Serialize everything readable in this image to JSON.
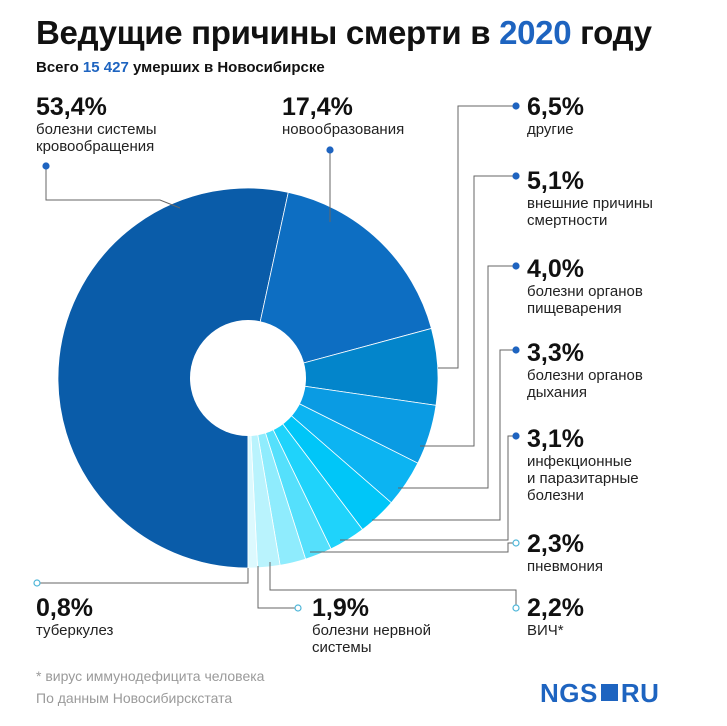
{
  "header": {
    "title_pre": "Ведущие причины смерти в ",
    "title_year": "2020",
    "title_post": " году",
    "subtitle_pre": "Всего ",
    "subtitle_num": "15 427",
    "subtitle_post": " умерших в Новосибирске"
  },
  "chart_data": {
    "type": "pie",
    "title": "Ведущие причины смерти в 2020 году",
    "slices": [
      {
        "value": 53.4,
        "pct": "53,4%",
        "label": [
          "болезни системы",
          "кровообращения"
        ],
        "color": "#0a5ca9"
      },
      {
        "value": 17.4,
        "pct": "17,4%",
        "label": [
          "новообразования"
        ],
        "color": "#0d6ec2"
      },
      {
        "value": 6.5,
        "pct": "6,5%",
        "label": [
          "другие"
        ],
        "color": "#0385cb"
      },
      {
        "value": 5.1,
        "pct": "5,1%",
        "label": [
          "внешние причины",
          "смертности"
        ],
        "color": "#0a9be3"
      },
      {
        "value": 4.0,
        "pct": "4,0%",
        "label": [
          "болезни органов",
          "пищеварения"
        ],
        "color": "#0cb4f2"
      },
      {
        "value": 3.3,
        "pct": "3,3%",
        "label": [
          "болезни органов",
          "дыхания"
        ],
        "color": "#00c6f8"
      },
      {
        "value": 3.1,
        "pct": "3,1%",
        "label": [
          "инфекционные",
          "и паразитарные",
          "болезни"
        ],
        "color": "#1fd3fb"
      },
      {
        "value": 2.3,
        "pct": "2,3%",
        "label": [
          "пневмония"
        ],
        "color": "#55e0fc"
      },
      {
        "value": 2.2,
        "pct": "2,2%",
        "label": [
          "ВИЧ*"
        ],
        "color": "#8fecfd"
      },
      {
        "value": 1.9,
        "pct": "1,9%",
        "label": [
          "болезни нервной",
          "системы"
        ],
        "color": "#b9f3fd"
      },
      {
        "value": 0.8,
        "pct": "0,8%",
        "label": [
          "туберкулез"
        ],
        "color": "#dcf9fe"
      }
    ]
  },
  "footer": {
    "note": "* вирус иммунодефицита человека",
    "source": "По данным Новосибирскстата",
    "logo_left": "NGS",
    "logo_right": "RU"
  }
}
